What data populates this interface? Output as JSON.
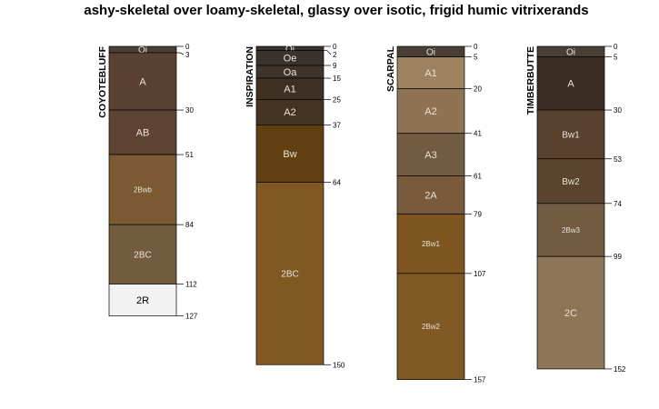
{
  "chart_data": {
    "type": "soil-profile",
    "title": "ashy-skeletal over loamy-skeletal, glassy over isotic, frigid humic vitrixerands",
    "profiles": [
      {
        "name": "COYOTEBLUFF",
        "horizons": [
          {
            "name": "Oi",
            "top": 0,
            "bottom": 3,
            "color": "#4a3f36"
          },
          {
            "name": "A",
            "top": 3,
            "bottom": 30,
            "color": "#5b4131"
          },
          {
            "name": "AB",
            "top": 30,
            "bottom": 51,
            "color": "#5e4333"
          },
          {
            "name": "2Bwb",
            "top": 51,
            "bottom": 84,
            "color": "#7c5a34"
          },
          {
            "name": "2BC",
            "top": 84,
            "bottom": 112,
            "color": "#735b40"
          },
          {
            "name": "2R",
            "top": 112,
            "bottom": 127,
            "color": "#f2f2f2"
          }
        ]
      },
      {
        "name": "INSPIRATION",
        "horizons": [
          {
            "name": "Oi",
            "top": 0,
            "bottom": 2,
            "color": "#3a322e"
          },
          {
            "name": "Oe",
            "top": 2,
            "bottom": 9,
            "color": "#3a322d"
          },
          {
            "name": "Oa",
            "top": 9,
            "bottom": 15,
            "color": "#3d342d"
          },
          {
            "name": "A1",
            "top": 15,
            "bottom": 25,
            "color": "#3f3024"
          },
          {
            "name": "A2",
            "top": 25,
            "bottom": 37,
            "color": "#433322"
          },
          {
            "name": "Bw",
            "top": 37,
            "bottom": 64,
            "color": "#623f10"
          },
          {
            "name": "2BC",
            "top": 64,
            "bottom": 150,
            "color": "#7f5822"
          }
        ]
      },
      {
        "name": "SCARPAL",
        "horizons": [
          {
            "name": "Oi",
            "top": 0,
            "bottom": 5,
            "color": "#4a3f36"
          },
          {
            "name": "A1",
            "top": 5,
            "bottom": 20,
            "color": "#9d835f"
          },
          {
            "name": "A2",
            "top": 20,
            "bottom": 41,
            "color": "#8f7353"
          },
          {
            "name": "A3",
            "top": 41,
            "bottom": 61,
            "color": "#725b43"
          },
          {
            "name": "2A",
            "top": 61,
            "bottom": 79,
            "color": "#795a3a"
          },
          {
            "name": "2Bw1",
            "top": 79,
            "bottom": 107,
            "color": "#7f5622"
          },
          {
            "name": "2Bw2",
            "top": 107,
            "bottom": 157,
            "color": "#7f5823"
          }
        ]
      },
      {
        "name": "TIMBERBUTTE",
        "horizons": [
          {
            "name": "Oi",
            "top": 0,
            "bottom": 5,
            "color": "#4a3f36"
          },
          {
            "name": "A",
            "top": 5,
            "bottom": 30,
            "color": "#3c2d22"
          },
          {
            "name": "Bw1",
            "top": 30,
            "bottom": 53,
            "color": "#5a412e"
          },
          {
            "name": "Bw2",
            "top": 53,
            "bottom": 74,
            "color": "#5b442e"
          },
          {
            "name": "2Bw3",
            "top": 74,
            "bottom": 99,
            "color": "#735a42"
          },
          {
            "name": "2C",
            "top": 99,
            "bottom": 152,
            "color": "#8e7558"
          }
        ]
      }
    ]
  }
}
